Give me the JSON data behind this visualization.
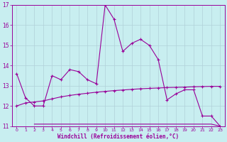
{
  "xlabel": "Windchill (Refroidissement éolien,°C)",
  "background_color": "#c8eef0",
  "line_color": "#990099",
  "grid_color": "#b0d0d8",
  "ylim": [
    11,
    17
  ],
  "xlim": [
    -0.5,
    23.5
  ],
  "yticks": [
    11,
    12,
    13,
    14,
    15,
    16,
    17
  ],
  "xticks": [
    0,
    1,
    2,
    3,
    4,
    5,
    6,
    7,
    8,
    9,
    10,
    11,
    12,
    13,
    14,
    15,
    16,
    17,
    18,
    19,
    20,
    21,
    22,
    23
  ],
  "series1_x": [
    0,
    1,
    2,
    3,
    4,
    5,
    6,
    7,
    8,
    9,
    10,
    11,
    12,
    13,
    14,
    15,
    16,
    17,
    18,
    19,
    20,
    21,
    22,
    23
  ],
  "series1_y": [
    13.6,
    12.4,
    12.0,
    12.0,
    13.5,
    13.3,
    13.8,
    13.7,
    13.3,
    13.1,
    17.0,
    16.3,
    14.7,
    15.1,
    15.3,
    15.0,
    14.3,
    12.3,
    12.6,
    12.8,
    12.8,
    11.5,
    11.5,
    11.0
  ],
  "series2_x": [
    0,
    1,
    2,
    3,
    4,
    5,
    6,
    7,
    8,
    9,
    10,
    11,
    12,
    13,
    14,
    15,
    16,
    17,
    18,
    19,
    20,
    21,
    22,
    23
  ],
  "series2_y": [
    12.0,
    12.15,
    12.2,
    12.25,
    12.35,
    12.45,
    12.52,
    12.58,
    12.63,
    12.68,
    12.72,
    12.76,
    12.79,
    12.82,
    12.85,
    12.87,
    12.89,
    12.91,
    12.92,
    12.93,
    12.95,
    12.96,
    12.97,
    12.97
  ],
  "series3_x": [
    2,
    3,
    4,
    5,
    6,
    7,
    8,
    9,
    10,
    11,
    12,
    13,
    14,
    15,
    16,
    17,
    18,
    19,
    20,
    21,
    22,
    23
  ],
  "series3_y": [
    11.1,
    11.1,
    11.1,
    11.1,
    11.1,
    11.1,
    11.1,
    11.1,
    11.1,
    11.1,
    11.1,
    11.1,
    11.1,
    11.1,
    11.1,
    11.1,
    11.1,
    11.1,
    11.1,
    11.1,
    11.1,
    11.0
  ]
}
